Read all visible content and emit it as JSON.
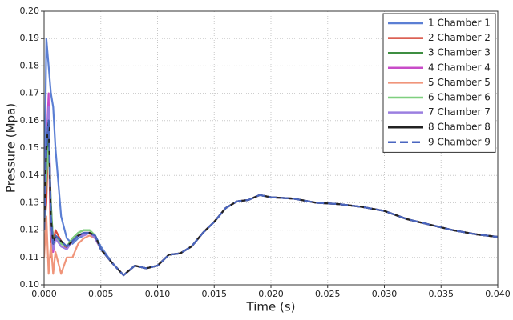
{
  "chart_data": {
    "type": "line",
    "xlabel": "Time (s)",
    "ylabel": "Pressure (Mpa)",
    "x": [
      0,
      0.0002,
      0.0004,
      0.0006,
      0.0008,
      0.001,
      0.0015,
      0.002,
      0.0025,
      0.003,
      0.0035,
      0.004,
      0.0045,
      0.005,
      0.006,
      0.007,
      0.008,
      0.009,
      0.01,
      0.011,
      0.012,
      0.013,
      0.014,
      0.015,
      0.016,
      0.017,
      0.018,
      0.019,
      0.02,
      0.022,
      0.024,
      0.026,
      0.028,
      0.03,
      0.032,
      0.034,
      0.036,
      0.038,
      0.04
    ],
    "series": [
      {
        "name": "1 Chamber 1",
        "color": "#5b7fd4",
        "values": [
          0.12,
          0.19,
          0.18,
          0.17,
          0.165,
          0.15,
          0.125,
          0.117,
          0.115,
          0.117,
          0.118,
          0.119,
          0.118,
          0.114,
          0.108,
          0.1035,
          0.107,
          0.106,
          0.107,
          0.111,
          0.1115,
          0.114,
          0.119,
          0.123,
          0.128,
          0.1305,
          0.131,
          0.1328,
          0.132,
          0.1315,
          0.13,
          0.1295,
          0.1285,
          0.127,
          0.124,
          0.122,
          0.12,
          0.1185,
          0.1175
        ]
      },
      {
        "name": "2 Chamber 2",
        "color": "#d64a3b",
        "values": [
          0.12,
          0.13,
          0.16,
          0.11,
          0.115,
          0.12,
          0.116,
          0.113,
          0.117,
          0.118,
          0.118,
          0.119,
          0.117,
          0.113,
          0.108,
          0.1035,
          0.107,
          0.106,
          0.107,
          0.111,
          0.1115,
          0.114,
          0.119,
          0.123,
          0.128,
          0.1305,
          0.131,
          0.1328,
          0.132,
          0.1315,
          0.13,
          0.1295,
          0.1285,
          0.127,
          0.124,
          0.122,
          0.12,
          0.1185,
          0.1175
        ]
      },
      {
        "name": "3 Chamber 3",
        "color": "#3e8e41",
        "values": [
          0.12,
          0.14,
          0.155,
          0.13,
          0.115,
          0.118,
          0.115,
          0.114,
          0.117,
          0.119,
          0.12,
          0.12,
          0.118,
          0.113,
          0.108,
          0.1035,
          0.107,
          0.106,
          0.107,
          0.111,
          0.1115,
          0.114,
          0.119,
          0.123,
          0.128,
          0.1305,
          0.131,
          0.1328,
          0.132,
          0.1315,
          0.13,
          0.1295,
          0.1285,
          0.127,
          0.124,
          0.122,
          0.12,
          0.1185,
          0.1175
        ]
      },
      {
        "name": "4 Chamber 4",
        "color": "#c84cc8",
        "values": [
          0.12,
          0.15,
          0.17,
          0.12,
          0.112,
          0.117,
          0.114,
          0.113,
          0.116,
          0.118,
          0.118,
          0.119,
          0.117,
          0.113,
          0.108,
          0.1035,
          0.107,
          0.106,
          0.107,
          0.111,
          0.1115,
          0.114,
          0.119,
          0.123,
          0.128,
          0.1305,
          0.131,
          0.1328,
          0.132,
          0.1315,
          0.13,
          0.1295,
          0.1285,
          0.127,
          0.124,
          0.122,
          0.12,
          0.1185,
          0.1175
        ]
      },
      {
        "name": "5 Chamber 5",
        "color": "#f0957a",
        "values": [
          0.11,
          0.125,
          0.104,
          0.115,
          0.104,
          0.112,
          0.104,
          0.11,
          0.11,
          0.115,
          0.117,
          0.118,
          0.117,
          0.113,
          0.108,
          0.1035,
          0.107,
          0.106,
          0.107,
          0.111,
          0.1115,
          0.114,
          0.119,
          0.123,
          0.128,
          0.1305,
          0.131,
          0.1328,
          0.132,
          0.1315,
          0.13,
          0.1295,
          0.1285,
          0.127,
          0.124,
          0.122,
          0.12,
          0.1185,
          0.1175
        ]
      },
      {
        "name": "6 Chamber 6",
        "color": "#7fcf7f",
        "values": [
          0.12,
          0.14,
          0.15,
          0.128,
          0.116,
          0.118,
          0.115,
          0.114,
          0.117,
          0.119,
          0.12,
          0.12,
          0.118,
          0.113,
          0.108,
          0.1035,
          0.107,
          0.106,
          0.107,
          0.111,
          0.1115,
          0.114,
          0.119,
          0.123,
          0.128,
          0.1305,
          0.131,
          0.1328,
          0.132,
          0.1315,
          0.13,
          0.1295,
          0.1285,
          0.127,
          0.124,
          0.122,
          0.12,
          0.1185,
          0.1175
        ]
      },
      {
        "name": "7 Chamber 7",
        "color": "#9b7fe0",
        "values": [
          0.12,
          0.15,
          0.165,
          0.12,
          0.113,
          0.117,
          0.114,
          0.113,
          0.116,
          0.118,
          0.118,
          0.119,
          0.117,
          0.113,
          0.108,
          0.1035,
          0.107,
          0.106,
          0.107,
          0.111,
          0.1115,
          0.114,
          0.119,
          0.123,
          0.128,
          0.1305,
          0.131,
          0.1328,
          0.132,
          0.1315,
          0.13,
          0.1295,
          0.1285,
          0.127,
          0.124,
          0.122,
          0.12,
          0.1185,
          0.1175
        ]
      },
      {
        "name": "8 Chamber 8",
        "color": "#222222",
        "values": [
          0.12,
          0.15,
          0.16,
          0.125,
          0.115,
          0.118,
          0.116,
          0.114,
          0.116,
          0.118,
          0.119,
          0.119,
          0.118,
          0.113,
          0.108,
          0.1035,
          0.107,
          0.106,
          0.107,
          0.111,
          0.1115,
          0.114,
          0.119,
          0.123,
          0.128,
          0.1305,
          0.131,
          0.1328,
          0.132,
          0.1315,
          0.13,
          0.1295,
          0.1285,
          0.127,
          0.124,
          0.122,
          0.12,
          0.1185,
          0.1175
        ]
      },
      {
        "name": "9 Chamber 9",
        "color": "#4a66c0",
        "dashed": true,
        "values": [
          0.12,
          0.15,
          0.16,
          0.125,
          0.115,
          0.118,
          0.116,
          0.114,
          0.116,
          0.118,
          0.119,
          0.119,
          0.118,
          0.113,
          0.108,
          0.1035,
          0.107,
          0.106,
          0.107,
          0.111,
          0.1115,
          0.114,
          0.119,
          0.123,
          0.128,
          0.1305,
          0.131,
          0.1328,
          0.132,
          0.1315,
          0.13,
          0.1295,
          0.1285,
          0.127,
          0.124,
          0.122,
          0.12,
          0.1185,
          0.1175
        ]
      }
    ],
    "xlim": [
      0,
      0.04
    ],
    "xticks": [
      {
        "value": 0,
        "label": "0.000"
      },
      {
        "value": 0.005,
        "label": "0.005"
      },
      {
        "value": 0.01,
        "label": "0.010"
      },
      {
        "value": 0.015,
        "label": "0.015"
      },
      {
        "value": 0.02,
        "label": "0.020"
      },
      {
        "value": 0.025,
        "label": "0.025"
      },
      {
        "value": 0.03,
        "label": "0.030"
      },
      {
        "value": 0.035,
        "label": "0.035"
      },
      {
        "value": 0.04,
        "label": "0.040"
      }
    ],
    "ylim": [
      0.1,
      0.2
    ],
    "yticks": [
      {
        "value": 0.1,
        "label": "0.10"
      },
      {
        "value": 0.11,
        "label": "0.11"
      },
      {
        "value": 0.12,
        "label": "0.12"
      },
      {
        "value": 0.13,
        "label": "0.13"
      },
      {
        "value": 0.14,
        "label": "0.14"
      },
      {
        "value": 0.15,
        "label": "0.15"
      },
      {
        "value": 0.16,
        "label": "0.16"
      },
      {
        "value": 0.17,
        "label": "0.17"
      },
      {
        "value": 0.18,
        "label": "0.18"
      },
      {
        "value": 0.19,
        "label": "0.19"
      },
      {
        "value": 0.2,
        "label": "0.20"
      }
    ],
    "grid": true,
    "legend": "upper right"
  }
}
